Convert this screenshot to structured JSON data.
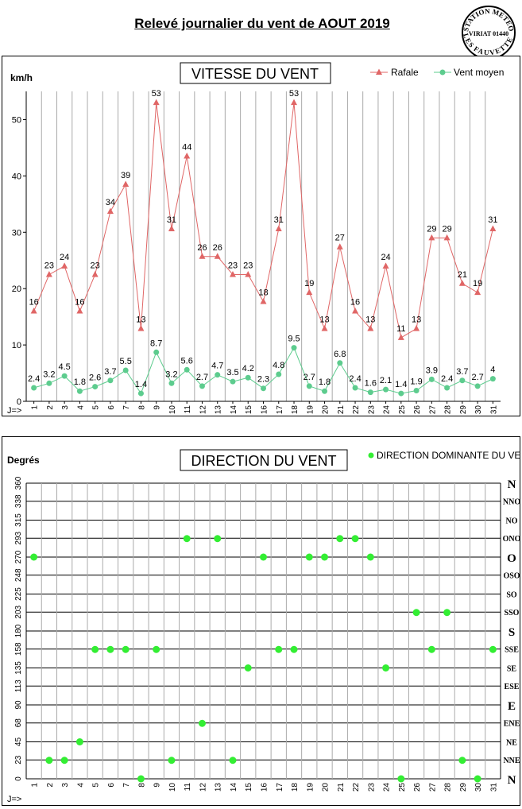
{
  "page": {
    "title": "Relevé journalier du vent de AOUT 2019",
    "stamp": {
      "top": "STATION METEO",
      "middle": "VIRIAT 01440",
      "bottom": "LES FAUVETTES"
    }
  },
  "colors": {
    "rafale": "#e06666",
    "vent_moyen": "#5dcc8e",
    "direction": "#33ee33"
  },
  "chart_data": [
    {
      "type": "line",
      "title": "VITESSE DU VENT",
      "ylabel": "km/h",
      "x_prefix": "J=>",
      "ylim": [
        0,
        55
      ],
      "yticks": [
        0,
        10,
        20,
        30,
        40,
        50
      ],
      "grid": true,
      "legend_position": "top-right",
      "x": [
        1,
        2,
        3,
        4,
        5,
        6,
        7,
        8,
        9,
        10,
        11,
        12,
        13,
        14,
        15,
        16,
        17,
        18,
        19,
        20,
        21,
        22,
        23,
        24,
        25,
        26,
        27,
        28,
        29,
        30,
        31
      ],
      "series": [
        {
          "name": "Rafale",
          "marker": "triangle",
          "values": [
            16,
            22.5,
            24,
            16,
            22.5,
            33.7,
            38.5,
            12.9,
            53,
            30.6,
            43.5,
            25.7,
            25.7,
            22.5,
            22.5,
            17.7,
            30.6,
            53,
            19.3,
            12.9,
            27.4,
            16,
            12.9,
            24,
            11.3,
            12.9,
            29,
            29,
            20.9,
            19.3,
            30.6
          ],
          "labels": [
            "16",
            "23",
            "24",
            "16",
            "23",
            "34",
            "39",
            "13",
            "53",
            "31",
            "44",
            "26",
            "26",
            "23",
            "23",
            "18",
            "31",
            "53",
            "19",
            "13",
            "27",
            "16",
            "13",
            "24",
            "11",
            "13",
            "29",
            "29",
            "21",
            "19",
            "31"
          ]
        },
        {
          "name": "Vent moyen",
          "marker": "circle",
          "values": [
            2.4,
            3.2,
            4.5,
            1.8,
            2.6,
            3.7,
            5.5,
            1.4,
            8.7,
            3.2,
            5.6,
            2.7,
            4.7,
            3.5,
            4.2,
            2.3,
            4.8,
            9.5,
            2.7,
            1.8,
            6.8,
            2.4,
            1.6,
            2.1,
            1.4,
            1.9,
            3.9,
            2.4,
            3.7,
            2.7,
            4
          ],
          "labels": [
            "2.4",
            "3.2",
            "4.5",
            "1.8",
            "2.6",
            "3.7",
            "5.5",
            "1.4",
            "8.7",
            "3.2",
            "5.6",
            "2.7",
            "4.7",
            "3.5",
            "4.2",
            "2.3",
            "4.8",
            "9.5",
            "2.7",
            "1.8",
            "6.8",
            "2.4",
            "1.6",
            "2.1",
            "1.4",
            "1.9",
            "3.9",
            "2.4",
            "3.7",
            "2.7",
            "4"
          ]
        }
      ]
    },
    {
      "type": "scatter",
      "title": "DIRECTION DU VENT",
      "ylabel": "Degrés",
      "x_prefix": "J=>",
      "ylim": [
        0,
        360
      ],
      "yticks": [
        0,
        23,
        45,
        68,
        90,
        113,
        135,
        158,
        180,
        203,
        225,
        248,
        270,
        293,
        315,
        338,
        360
      ],
      "direction_labels": [
        "N",
        "NNE",
        "NE",
        "ENE",
        "E",
        "ESE",
        "SE",
        "SSE",
        "S",
        "SSO",
        "SO",
        "OSO",
        "O",
        "ONO",
        "NO",
        "NNO",
        "N"
      ],
      "grid": true,
      "legend_position": "top-right",
      "x": [
        1,
        2,
        3,
        4,
        5,
        6,
        7,
        8,
        9,
        10,
        11,
        12,
        13,
        14,
        15,
        16,
        17,
        18,
        19,
        20,
        21,
        22,
        23,
        24,
        25,
        26,
        27,
        28,
        29,
        30,
        31
      ],
      "series": [
        {
          "name": "DIRECTION DOMINANTE DU VENT",
          "values": [
            270,
            22.5,
            22.5,
            45,
            157.5,
            157.5,
            157.5,
            0,
            157.5,
            22.5,
            292.5,
            67.5,
            292.5,
            22.5,
            135,
            270,
            157.5,
            157.5,
            270,
            270,
            292.5,
            292.5,
            270,
            135,
            0,
            202.5,
            157.5,
            202.5,
            22.5,
            0,
            157.5
          ]
        }
      ]
    }
  ]
}
